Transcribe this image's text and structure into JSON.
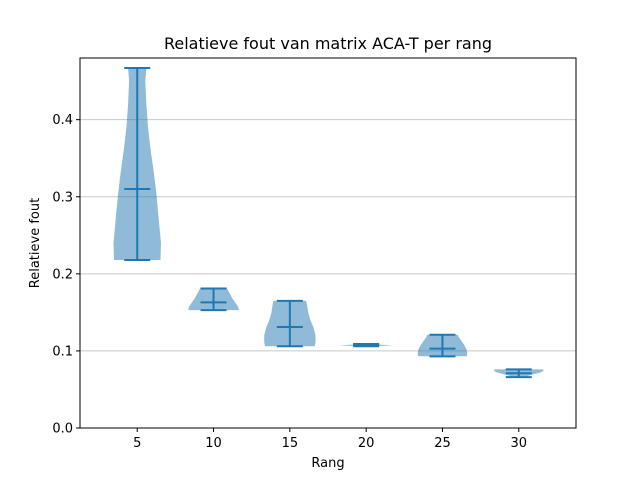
{
  "chart_data": {
    "type": "violin",
    "title": "Relatieve fout van matrix ACA-T per rang",
    "xlabel": "Rang",
    "ylabel": "Relatieve fout",
    "categories": [
      "5",
      "10",
      "15",
      "20",
      "25",
      "30"
    ],
    "ylim": [
      0.0,
      0.48
    ],
    "yticks": [
      "0.0",
      "0.1",
      "0.2",
      "0.3",
      "0.4"
    ],
    "grid": "horizontal",
    "violin_color": "#1f77b4",
    "series": [
      {
        "category": "5",
        "min": 0.218,
        "mean": 0.31,
        "max": 0.467,
        "profile": [
          [
            0.218,
            0.86
          ],
          [
            0.24,
            0.88
          ],
          [
            0.27,
            0.8
          ],
          [
            0.3,
            0.72
          ],
          [
            0.33,
            0.62
          ],
          [
            0.36,
            0.5
          ],
          [
            0.39,
            0.4
          ],
          [
            0.42,
            0.34
          ],
          [
            0.45,
            0.3
          ],
          [
            0.467,
            0.34
          ]
        ]
      },
      {
        "category": "10",
        "min": 0.153,
        "mean": 0.163,
        "max": 0.181,
        "profile": [
          [
            0.153,
            0.94
          ],
          [
            0.158,
            0.9
          ],
          [
            0.163,
            0.8
          ],
          [
            0.168,
            0.7
          ],
          [
            0.173,
            0.62
          ],
          [
            0.177,
            0.56
          ],
          [
            0.181,
            0.5
          ]
        ]
      },
      {
        "category": "15",
        "min": 0.106,
        "mean": 0.131,
        "max": 0.165,
        "profile": [
          [
            0.106,
            0.92
          ],
          [
            0.112,
            0.95
          ],
          [
            0.12,
            0.95
          ],
          [
            0.13,
            0.88
          ],
          [
            0.14,
            0.76
          ],
          [
            0.15,
            0.68
          ],
          [
            0.16,
            0.64
          ],
          [
            0.165,
            0.6
          ]
        ]
      },
      {
        "category": "20",
        "min": 0.106,
        "mean": 0.108,
        "max": 0.109,
        "profile": [
          [
            0.106,
            0.1
          ],
          [
            0.107,
            1.0
          ],
          [
            0.108,
            0.6
          ],
          [
            0.109,
            0.1
          ]
        ]
      },
      {
        "category": "25",
        "min": 0.093,
        "mean": 0.103,
        "max": 0.121,
        "profile": [
          [
            0.093,
            0.9
          ],
          [
            0.098,
            0.92
          ],
          [
            0.103,
            0.88
          ],
          [
            0.108,
            0.8
          ],
          [
            0.113,
            0.7
          ],
          [
            0.118,
            0.6
          ],
          [
            0.121,
            0.56
          ]
        ]
      },
      {
        "category": "30",
        "min": 0.066,
        "mean": 0.071,
        "max": 0.076,
        "profile": [
          [
            0.066,
            0.18
          ],
          [
            0.069,
            0.48
          ],
          [
            0.072,
            0.8
          ],
          [
            0.074,
            0.92
          ],
          [
            0.076,
            0.9
          ]
        ]
      }
    ]
  }
}
